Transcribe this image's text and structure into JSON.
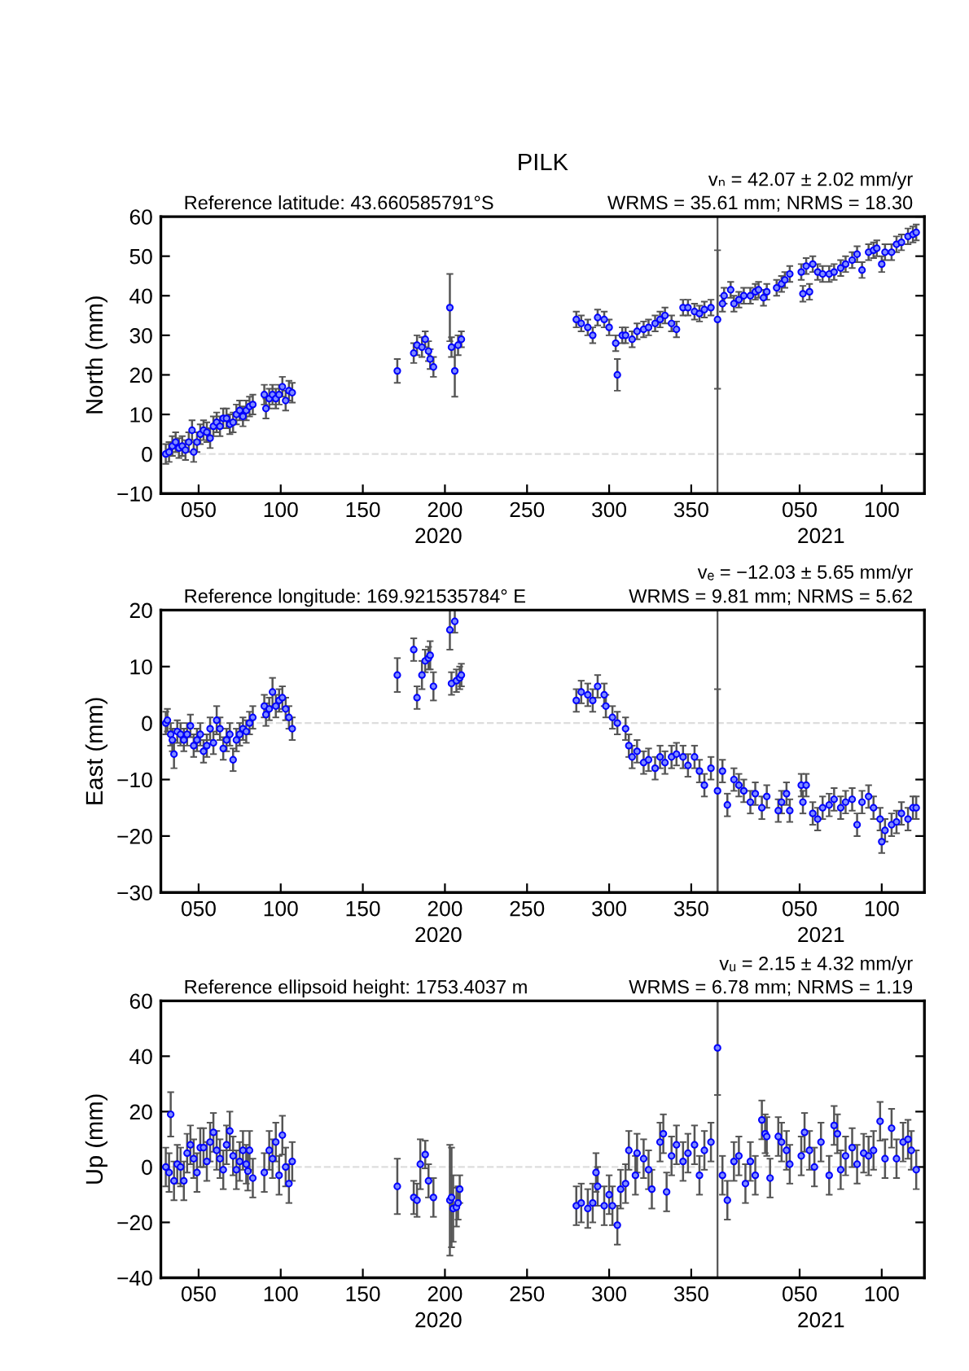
{
  "chart_data": [
    {
      "type": "scatter",
      "title": "PILK",
      "subtitle": "Reference latitude: 43.660585791°S",
      "annotations": [
        "vₙ = 42.07 ± 2.02 mm/yr",
        "WRMS = 35.61 mm; NRMS = 18.30"
      ],
      "ylabel": "North (mm)",
      "marker": "circle",
      "xlim": [
        "2020-01-27",
        "2021-05-06"
      ],
      "xticks": [
        {
          "value": "2020-02-19",
          "label": "050"
        },
        {
          "value": "2020-04-09",
          "label": "100"
        },
        {
          "value": "2020-05-29",
          "label": "150"
        },
        {
          "value": "2020-07-18",
          "label": "200"
        },
        {
          "value": "2020-09-06",
          "label": "250"
        },
        {
          "value": "2020-10-26",
          "label": "300"
        },
        {
          "value": "2020-12-15",
          "label": "350"
        },
        {
          "value": "2021-02-19",
          "label": "050"
        },
        {
          "value": "2021-04-10",
          "label": "100"
        }
      ],
      "x2lim": [
        "2020-01-27",
        "2021-05-06"
      ],
      "x2ticks": [
        {
          "value": "2020-07-14",
          "label": "2020"
        },
        {
          "value": "2021-03-04",
          "label": "2021"
        }
      ],
      "ylim": [
        -10,
        60
      ],
      "yticks": [
        -10,
        0,
        10,
        20,
        30,
        40,
        50,
        60
      ],
      "ref_lines": [
        {
          "axis": "y",
          "value": 0,
          "color": "#dddddd",
          "line_style": "dashed"
        },
        {
          "axis": "x",
          "value": "2020-12-31",
          "color": "#555555",
          "line_style": "solid"
        }
      ],
      "series": [
        {
          "color": "#0000ff",
          "x": [
            "2020-01-30",
            "2020-02-01",
            "2020-02-03",
            "2020-02-05",
            "2020-02-07",
            "2020-02-09",
            "2020-02-11",
            "2020-02-13",
            "2020-02-15",
            "2020-02-16",
            "2020-02-18",
            "2020-02-20",
            "2020-02-22",
            "2020-02-24",
            "2020-02-26",
            "2020-02-28",
            "2020-03-01",
            "2020-03-03",
            "2020-03-05",
            "2020-03-07",
            "2020-03-09",
            "2020-03-11",
            "2020-03-13",
            "2020-03-15",
            "2020-03-17",
            "2020-03-19",
            "2020-03-21",
            "2020-03-23",
            "2020-03-30",
            "2020-03-31",
            "2020-04-02",
            "2020-04-04",
            "2020-04-06",
            "2020-04-08",
            "2020-04-10",
            "2020-04-12",
            "2020-04-14",
            "2020-04-16"
          ],
          "values": [
            0,
            0.5,
            2,
            3,
            1.5,
            2,
            1,
            3,
            6,
            0.5,
            3,
            5,
            6,
            5.5,
            4,
            7,
            8,
            7,
            9,
            9,
            7.5,
            8,
            10,
            11,
            9.5,
            11,
            12,
            12.5,
            15,
            11.5,
            14,
            15,
            14,
            15,
            17,
            13.5,
            16,
            15.5
          ],
          "errors": [
            2.5,
            2.5,
            2.5,
            2.5,
            2.5,
            2.5,
            2.5,
            2.5,
            2.5,
            2.5,
            2.5,
            2.5,
            2.5,
            2.5,
            2.5,
            2.5,
            2.5,
            2.5,
            2.5,
            2.5,
            2.5,
            2.5,
            2.5,
            2.5,
            2.5,
            2.5,
            2.5,
            2.5,
            2.5,
            2.5,
            2.5,
            2.5,
            2.5,
            2.5,
            2.5,
            2.5,
            2.5,
            2.5
          ]
        },
        {
          "color": "#0000ff",
          "x": [
            "2020-06-19",
            "2020-06-29",
            "2020-07-01",
            "2020-07-04",
            "2020-07-06",
            "2020-07-08",
            "2020-07-09",
            "2020-07-11",
            "2020-07-21",
            "2020-07-22",
            "2020-07-24",
            "2020-07-26",
            "2020-07-28"
          ],
          "values": [
            21,
            25.5,
            27.5,
            27,
            29,
            26,
            24,
            22,
            37,
            27,
            21,
            27.5,
            29
          ],
          "errors": [
            3,
            2.5,
            2.5,
            2.5,
            2,
            2.5,
            2.5,
            2.5,
            8.5,
            2.5,
            6.5,
            2.5,
            2
          ]
        },
        {
          "color": "#0000ff",
          "x": [
            "2020-10-06",
            "2020-10-09",
            "2020-10-13",
            "2020-10-16",
            "2020-10-19",
            "2020-10-23",
            "2020-10-26",
            "2020-10-30",
            "2020-10-31",
            "2020-11-03",
            "2020-11-05",
            "2020-11-09",
            "2020-11-12",
            "2020-11-16",
            "2020-11-19",
            "2020-11-23",
            "2020-11-26",
            "2020-11-29",
            "2020-12-03",
            "2020-12-06",
            "2020-12-10",
            "2020-12-13",
            "2020-12-17",
            "2020-12-20",
            "2020-12-23",
            "2020-12-27",
            "2020-12-31",
            "2021-01-03",
            "2021-01-04",
            "2021-01-08",
            "2021-01-10",
            "2021-01-13",
            "2021-01-16",
            "2021-01-20",
            "2021-01-23",
            "2021-01-25",
            "2021-01-28",
            "2021-01-30",
            "2021-02-05",
            "2021-02-08",
            "2021-02-10",
            "2021-02-13",
            "2021-02-20",
            "2021-02-21",
            "2021-02-23",
            "2021-02-25",
            "2021-02-27",
            "2021-03-02",
            "2021-03-05",
            "2021-03-09",
            "2021-03-12",
            "2021-03-16",
            "2021-03-19",
            "2021-03-23",
            "2021-03-26",
            "2021-03-29",
            "2021-04-02",
            "2021-04-05",
            "2021-04-07",
            "2021-04-10",
            "2021-04-12",
            "2021-04-16",
            "2021-04-19",
            "2021-04-22",
            "2021-04-26",
            "2021-04-29",
            "2021-05-01"
          ],
          "values": [
            34,
            33,
            32,
            30,
            34.5,
            34,
            32,
            28,
            20,
            30,
            30,
            29,
            31,
            31.5,
            32,
            33,
            34,
            35,
            33,
            31.5,
            37,
            37,
            36,
            35.5,
            36.5,
            37,
            34,
            38,
            40,
            41.5,
            38,
            39,
            40,
            40,
            41,
            41.5,
            39.5,
            41,
            42,
            43,
            44,
            45.5,
            46,
            40.5,
            47.5,
            41,
            48,
            46,
            45.5,
            45.5,
            46,
            47,
            48,
            49,
            50.5,
            46.5,
            51,
            51.5,
            52,
            48,
            51,
            51,
            53,
            53.5,
            55,
            55.5,
            56
          ],
          "errors": [
            2,
            2,
            2,
            2,
            2,
            2,
            2,
            2,
            4,
            2,
            2,
            2,
            2,
            2,
            2,
            2,
            2,
            2,
            2,
            2,
            2,
            2,
            2,
            2,
            2,
            2,
            17.5,
            2,
            2,
            2,
            2,
            2,
            2,
            2,
            2,
            2,
            2,
            2,
            2,
            2,
            2,
            2,
            2,
            2,
            2,
            2,
            2,
            2,
            2,
            2,
            2,
            2,
            2,
            2,
            2,
            2,
            2,
            2,
            2,
            2,
            2,
            2,
            2,
            2,
            2,
            2,
            2
          ]
        }
      ]
    },
    {
      "type": "scatter",
      "subtitle": "Reference longitude: 169.921535784° E",
      "annotations": [
        "vₑ = −12.03 ± 5.65 mm/yr",
        "WRMS = 9.81 mm; NRMS = 5.62"
      ],
      "ylabel": "East (mm)",
      "marker": "circle",
      "xlim": [
        "2020-01-27",
        "2021-05-06"
      ],
      "xticks": [
        {
          "value": "2020-02-19",
          "label": "050"
        },
        {
          "value": "2020-04-09",
          "label": "100"
        },
        {
          "value": "2020-05-29",
          "label": "150"
        },
        {
          "value": "2020-07-18",
          "label": "200"
        },
        {
          "value": "2020-09-06",
          "label": "250"
        },
        {
          "value": "2020-10-26",
          "label": "300"
        },
        {
          "value": "2020-12-15",
          "label": "350"
        },
        {
          "value": "2021-02-19",
          "label": "050"
        },
        {
          "value": "2021-04-10",
          "label": "100"
        }
      ],
      "x2lim": [
        "2020-01-27",
        "2021-05-06"
      ],
      "x2ticks": [
        {
          "value": "2020-07-14",
          "label": "2020"
        },
        {
          "value": "2021-03-04",
          "label": "2021"
        }
      ],
      "ylim": [
        -30,
        20
      ],
      "yticks": [
        -30,
        -20,
        -10,
        0,
        10,
        20
      ],
      "ref_lines": [
        {
          "axis": "y",
          "value": 0,
          "color": "#dddddd",
          "line_style": "dashed"
        },
        {
          "axis": "x",
          "value": "2020-12-31",
          "color": "#555555",
          "line_style": "solid"
        }
      ],
      "series": [
        {
          "color": "#0000ff",
          "x": [
            "2020-01-30",
            "2020-01-31",
            "2020-02-02",
            "2020-02-03",
            "2020-02-04",
            "2020-02-06",
            "2020-02-08",
            "2020-02-10",
            "2020-02-12",
            "2020-02-14",
            "2020-02-16",
            "2020-02-18",
            "2020-02-20",
            "2020-02-22",
            "2020-02-24",
            "2020-02-26",
            "2020-02-28",
            "2020-03-01",
            "2020-03-03",
            "2020-03-05",
            "2020-03-07",
            "2020-03-09",
            "2020-03-11",
            "2020-03-13",
            "2020-03-15",
            "2020-03-17",
            "2020-03-19",
            "2020-03-21",
            "2020-03-23",
            "2020-03-30",
            "2020-03-31",
            "2020-04-02",
            "2020-04-04",
            "2020-04-06",
            "2020-04-08",
            "2020-04-10",
            "2020-04-12",
            "2020-04-14",
            "2020-04-16"
          ],
          "values": [
            0,
            0.5,
            -2,
            -3,
            -5.5,
            -1.5,
            -2,
            -3,
            -2,
            -0.5,
            -4,
            -3,
            -2,
            -5,
            -4,
            -1,
            -3.5,
            0.5,
            -1,
            -4.5,
            -3,
            -2,
            -6.5,
            -3,
            -2,
            -1,
            -1.5,
            0,
            1,
            3,
            1.5,
            2.5,
            5.5,
            3,
            4,
            4.5,
            2.5,
            1,
            -1
          ],
          "errors": [
            2,
            2,
            2,
            2,
            2.5,
            2,
            2,
            2,
            2,
            2,
            2,
            2,
            2,
            2,
            2,
            2,
            2,
            2.5,
            2,
            2,
            2,
            2,
            2,
            2,
            2,
            2,
            2,
            2,
            2,
            2,
            2,
            2,
            2.5,
            2,
            2,
            2,
            2,
            2,
            2
          ]
        },
        {
          "color": "#0000ff",
          "x": [
            "2020-06-19",
            "2020-06-29",
            "2020-07-01",
            "2020-07-04",
            "2020-07-06",
            "2020-07-08",
            "2020-07-09",
            "2020-07-11",
            "2020-07-21",
            "2020-07-22",
            "2020-07-24",
            "2020-07-25",
            "2020-07-27",
            "2020-07-28"
          ],
          "values": [
            8.5,
            13,
            4.5,
            8.5,
            11,
            11.5,
            12,
            6.5,
            16.5,
            7,
            18,
            7.5,
            8,
            8.5
          ],
          "errors": [
            3,
            2,
            2,
            2.5,
            2,
            2,
            2.5,
            2.5,
            3.5,
            2,
            2,
            2,
            2,
            2
          ]
        },
        {
          "color": "#0000ff",
          "x": [
            "2020-10-06",
            "2020-10-09",
            "2020-10-13",
            "2020-10-16",
            "2020-10-19",
            "2020-10-23",
            "2020-10-24",
            "2020-10-28",
            "2020-10-31",
            "2020-11-05",
            "2020-11-07",
            "2020-11-09",
            "2020-11-12",
            "2020-11-16",
            "2020-11-19",
            "2020-11-23",
            "2020-11-26",
            "2020-11-29",
            "2020-12-03",
            "2020-12-06",
            "2020-12-10",
            "2020-12-13",
            "2020-12-17",
            "2020-12-20",
            "2020-12-23",
            "2020-12-27",
            "2020-12-31",
            "2021-01-03",
            "2021-01-06",
            "2021-01-10",
            "2021-01-13",
            "2021-01-16",
            "2021-01-20",
            "2021-01-23",
            "2021-01-27",
            "2021-01-30",
            "2021-02-06",
            "2021-02-08",
            "2021-02-11",
            "2021-02-13",
            "2021-02-20",
            "2021-02-21",
            "2021-02-23",
            "2021-02-27",
            "2021-03-02",
            "2021-03-05",
            "2021-03-09",
            "2021-03-12",
            "2021-03-16",
            "2021-03-19",
            "2021-03-23",
            "2021-03-26",
            "2021-03-29",
            "2021-04-02",
            "2021-04-05",
            "2021-04-09",
            "2021-04-10",
            "2021-04-12",
            "2021-04-16",
            "2021-04-19",
            "2021-04-22",
            "2021-04-26",
            "2021-04-29",
            "2021-05-01"
          ],
          "values": [
            4,
            5.5,
            5,
            4,
            6.5,
            5,
            3,
            1,
            0,
            -1,
            -4,
            -6,
            -5,
            -7,
            -6.5,
            -8,
            -6,
            -7,
            -6,
            -5.5,
            -6,
            -7.5,
            -6,
            -8.5,
            -11,
            -8,
            -12,
            -8.5,
            -14.5,
            -10,
            -11,
            -12,
            -14,
            -12.5,
            -15,
            -13,
            -15.5,
            -14,
            -12.5,
            -15.5,
            -11,
            -14,
            -11,
            -16,
            -17,
            -15,
            -14.5,
            -13.5,
            -15,
            -14,
            -13.5,
            -18,
            -14,
            -13,
            -15,
            -17,
            -21,
            -19,
            -18,
            -17.5,
            -16,
            -17,
            -15,
            -15
          ],
          "errors": [
            2,
            2,
            2,
            2,
            2,
            2,
            2,
            2,
            2,
            2,
            2,
            2,
            2,
            2,
            2,
            2,
            2,
            2,
            2,
            2,
            2,
            2,
            2,
            2,
            2,
            2,
            18,
            2,
            2,
            2,
            2,
            2,
            2,
            2,
            2,
            2,
            2,
            2,
            2,
            2,
            2,
            2,
            2,
            2,
            2,
            2,
            2,
            2,
            2,
            2,
            2,
            2,
            2,
            2,
            2,
            2,
            2,
            2,
            2,
            2,
            2,
            2,
            2,
            2
          ]
        }
      ]
    },
    {
      "type": "scatter",
      "subtitle": "Reference ellipsoid height: 1753.4037 m",
      "annotations": [
        "vᵤ = 2.15 ± 4.32 mm/yr",
        "WRMS = 6.78 mm; NRMS = 1.19"
      ],
      "ylabel": "Up (mm)",
      "marker": "circle",
      "xlim": [
        "2020-01-27",
        "2021-05-06"
      ],
      "xticks": [
        {
          "value": "2020-02-19",
          "label": "050"
        },
        {
          "value": "2020-04-09",
          "label": "100"
        },
        {
          "value": "2020-05-29",
          "label": "150"
        },
        {
          "value": "2020-07-18",
          "label": "200"
        },
        {
          "value": "2020-09-06",
          "label": "250"
        },
        {
          "value": "2020-10-26",
          "label": "300"
        },
        {
          "value": "2020-12-15",
          "label": "350"
        },
        {
          "value": "2021-02-19",
          "label": "050"
        },
        {
          "value": "2021-04-10",
          "label": "100"
        }
      ],
      "x2lim": [
        "2020-01-27",
        "2021-05-06"
      ],
      "x2ticks": [
        {
          "value": "2020-07-14",
          "label": "2020"
        },
        {
          "value": "2021-03-04",
          "label": "2021"
        }
      ],
      "ylim": [
        -40,
        60
      ],
      "yticks": [
        -40,
        -20,
        0,
        20,
        40,
        60
      ],
      "ref_lines": [
        {
          "axis": "y",
          "value": 0,
          "color": "#dddddd",
          "line_style": "dashed"
        },
        {
          "axis": "x",
          "value": "2020-12-31",
          "color": "#555555",
          "line_style": "solid"
        }
      ],
      "series": [
        {
          "color": "#0000ff",
          "x": [
            "2020-01-30",
            "2020-02-01",
            "2020-02-02",
            "2020-02-04",
            "2020-02-06",
            "2020-02-08",
            "2020-02-10",
            "2020-02-12",
            "2020-02-14",
            "2020-02-16",
            "2020-02-18",
            "2020-02-20",
            "2020-02-22",
            "2020-02-24",
            "2020-02-26",
            "2020-02-28",
            "2020-03-01",
            "2020-03-03",
            "2020-03-05",
            "2020-03-07",
            "2020-03-09",
            "2020-03-11",
            "2020-03-13",
            "2020-03-15",
            "2020-03-17",
            "2020-03-19",
            "2020-03-20",
            "2020-03-21",
            "2020-03-23",
            "2020-03-30",
            "2020-04-02",
            "2020-04-04",
            "2020-04-06",
            "2020-04-08",
            "2020-04-10",
            "2020-04-12",
            "2020-04-14",
            "2020-04-16"
          ],
          "values": [
            0,
            -2,
            19,
            -5,
            1,
            0,
            -5,
            5,
            8,
            3,
            -2,
            7,
            7,
            2,
            9,
            12.5,
            6,
            3,
            -1,
            8,
            13,
            4,
            -1,
            2,
            6,
            1,
            -1.5,
            6,
            -4,
            -2,
            6,
            3,
            9,
            -3,
            11.5,
            0,
            -6,
            2
          ],
          "errors": [
            7,
            7,
            8,
            7,
            7,
            7,
            7,
            7,
            7,
            7,
            7,
            7,
            7,
            7,
            7,
            7,
            7,
            7,
            7,
            7,
            7,
            7,
            7,
            7,
            7,
            7,
            7,
            7,
            7,
            7,
            7,
            7,
            7,
            7,
            7,
            7,
            7,
            7
          ]
        },
        {
          "color": "#0000ff",
          "x": [
            "2020-06-19",
            "2020-06-29",
            "2020-07-01",
            "2020-07-03",
            "2020-07-06",
            "2020-07-08",
            "2020-07-11",
            "2020-07-21",
            "2020-07-22",
            "2020-07-23",
            "2020-07-25",
            "2020-07-26",
            "2020-07-27"
          ],
          "values": [
            -7,
            -11,
            -12,
            1,
            4.5,
            -5,
            -11,
            -12,
            -11,
            -15,
            -14.5,
            -13,
            -8
          ],
          "errors": [
            10,
            6,
            6,
            9,
            5,
            6,
            7,
            20,
            18,
            12,
            7,
            6,
            5
          ]
        },
        {
          "color": "#0000ff",
          "x": [
            "2020-10-06",
            "2020-10-09",
            "2020-10-13",
            "2020-10-16",
            "2020-10-18",
            "2020-10-19",
            "2020-10-23",
            "2020-10-26",
            "2020-10-28",
            "2020-10-31",
            "2020-11-02",
            "2020-11-05",
            "2020-11-07",
            "2020-11-11",
            "2020-11-12",
            "2020-11-16",
            "2020-11-19",
            "2020-11-21",
            "2020-11-26",
            "2020-11-28",
            "2020-11-30",
            "2020-12-03",
            "2020-12-06",
            "2020-12-10",
            "2020-12-13",
            "2020-12-17",
            "2020-12-20",
            "2020-12-23",
            "2020-12-27",
            "2020-12-31",
            "2021-01-03",
            "2021-01-06",
            "2021-01-10",
            "2021-01-13",
            "2021-01-17",
            "2021-01-20",
            "2021-01-23",
            "2021-01-27",
            "2021-01-29",
            "2021-01-30",
            "2021-02-01",
            "2021-02-06",
            "2021-02-08",
            "2021-02-11",
            "2021-02-13",
            "2021-02-20",
            "2021-02-22",
            "2021-02-25",
            "2021-02-28",
            "2021-03-04",
            "2021-03-09",
            "2021-03-12",
            "2021-03-14",
            "2021-03-16",
            "2021-03-19",
            "2021-03-23",
            "2021-03-26",
            "2021-03-30",
            "2021-04-02",
            "2021-04-05",
            "2021-04-09",
            "2021-04-12",
            "2021-04-16",
            "2021-04-19",
            "2021-04-23",
            "2021-04-26",
            "2021-04-28",
            "2021-05-01"
          ],
          "values": [
            -14,
            -13,
            -15,
            -13,
            -2,
            -7,
            -14,
            -10,
            -14,
            -21,
            -8,
            -6,
            6,
            -3,
            5,
            3,
            -1,
            -8,
            9,
            12,
            -9,
            4,
            8,
            2,
            5,
            8,
            -3,
            6,
            9,
            43,
            -3,
            -12,
            2,
            4,
            -6,
            2,
            -3,
            17,
            12,
            11,
            -4,
            11,
            9,
            6,
            1,
            4,
            12.5,
            6,
            0,
            9,
            -3,
            15,
            12,
            -1,
            4,
            7,
            1,
            5,
            4,
            6,
            16.5,
            3,
            14,
            3,
            9,
            10,
            6,
            -1
          ],
          "errors": [
            7,
            7,
            7,
            7,
            7,
            7,
            7,
            7,
            7,
            7,
            7,
            7,
            7,
            7,
            7,
            7,
            7,
            7,
            7,
            7,
            7,
            7,
            7,
            7,
            7,
            7,
            7,
            7,
            7,
            17,
            7,
            7,
            7,
            7,
            7,
            7,
            7,
            7,
            7,
            7,
            7,
            7,
            7,
            7,
            7,
            7,
            7,
            7,
            7,
            7,
            7,
            7,
            7,
            7,
            7,
            7,
            7,
            7,
            7,
            7,
            7,
            7,
            7,
            7,
            7,
            7,
            7,
            7
          ]
        }
      ]
    }
  ]
}
